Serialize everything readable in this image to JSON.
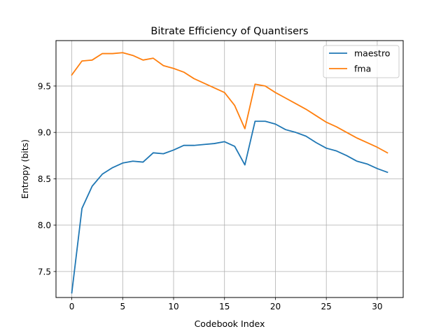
{
  "chart_data": {
    "type": "line",
    "title": "Bitrate Efficiency of Quantisers",
    "xlabel": "Codebook Index",
    "ylabel": "Entropy (bits)",
    "x": [
      0,
      1,
      2,
      3,
      4,
      5,
      6,
      7,
      8,
      9,
      10,
      11,
      12,
      13,
      14,
      15,
      16,
      17,
      18,
      19,
      20,
      21,
      22,
      23,
      24,
      25,
      26,
      27,
      28,
      29,
      30,
      31
    ],
    "xlim": [
      -1.55,
      32.55
    ],
    "ylim": [
      7.22,
      9.99
    ],
    "xticks": [
      0,
      5,
      10,
      15,
      20,
      25,
      30
    ],
    "xtick_labels": [
      "0",
      "5",
      "10",
      "15",
      "20",
      "25",
      "30"
    ],
    "yticks": [
      7.5,
      8.0,
      8.5,
      9.0,
      9.5
    ],
    "ytick_labels": [
      "7.5",
      "8.0",
      "8.5",
      "9.0",
      "9.5"
    ],
    "grid": true,
    "legend_position": "top-right",
    "series": [
      {
        "name": "maestro",
        "color": "#1f77b4",
        "values": [
          7.27,
          8.18,
          8.42,
          8.55,
          8.62,
          8.67,
          8.69,
          8.68,
          8.78,
          8.77,
          8.81,
          8.86,
          8.86,
          8.87,
          8.88,
          8.9,
          8.85,
          8.65,
          9.12,
          9.12,
          9.09,
          9.03,
          9.0,
          8.96,
          8.89,
          8.83,
          8.8,
          8.75,
          8.69,
          8.66,
          8.61,
          8.57
        ]
      },
      {
        "name": "fma",
        "color": "#ff7f0e",
        "values": [
          9.62,
          9.77,
          9.78,
          9.85,
          9.85,
          9.86,
          9.83,
          9.78,
          9.8,
          9.72,
          9.69,
          9.65,
          9.58,
          9.53,
          9.48,
          9.43,
          9.29,
          9.04,
          9.52,
          9.5,
          9.43,
          9.37,
          9.31,
          9.25,
          9.18,
          9.11,
          9.06,
          9.0,
          8.94,
          8.89,
          8.84,
          8.78
        ]
      }
    ]
  }
}
